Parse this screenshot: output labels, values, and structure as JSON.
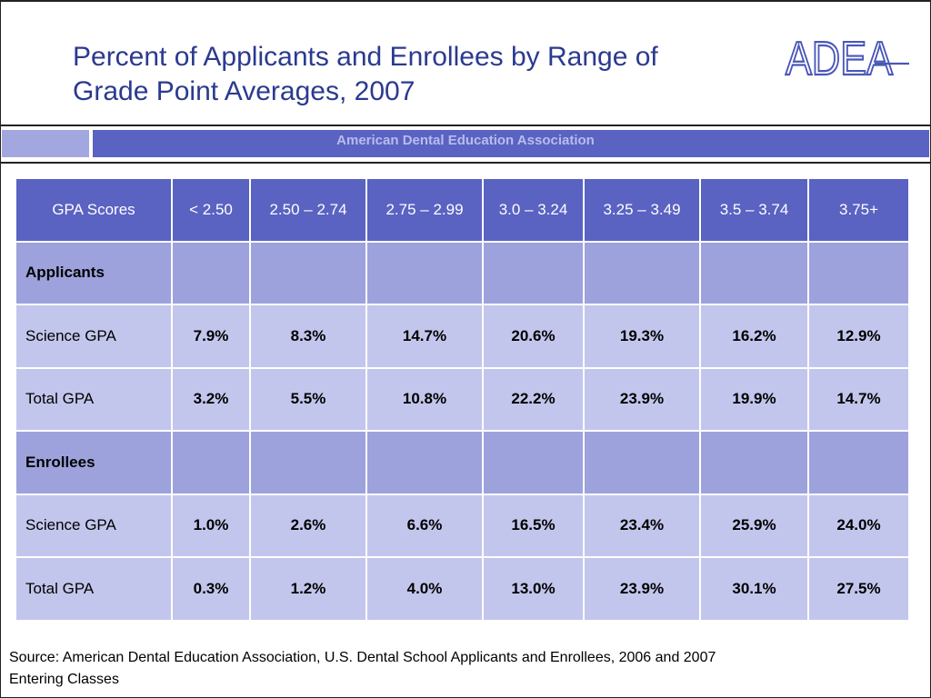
{
  "slide": {
    "title_line1": "Percent of Applicants and Enrollees by Range of",
    "title_line2": "Grade Point Averages, 2007",
    "logo_text": "ADEA",
    "band_text": "American Dental Education Association",
    "source_line1": "Source: American Dental Education Association, U.S. Dental School Applicants and Enrollees, 2006 and 2007",
    "source_line2": "Entering Classes",
    "colors": {
      "header": "#5a62c2",
      "section": "#9da2dc",
      "row": "#c3c6ec",
      "title": "#2b3a8f"
    }
  },
  "table": {
    "headers": [
      "GPA  Scores",
      "< 2.50",
      "2.50 – 2.74",
      "2.75 – 2.99",
      "3.0 – 3.24",
      "3.25 – 3.49",
      "3.5 – 3.74",
      "3.75+"
    ],
    "rows": [
      {
        "label": "Applicants",
        "section": true,
        "values": [
          "",
          "",
          "",
          "",
          "",
          "",
          ""
        ]
      },
      {
        "label": "Science GPA",
        "section": false,
        "values": [
          "7.9%",
          "8.3%",
          "14.7%",
          "20.6%",
          "19.3%",
          "16.2%",
          "12.9%"
        ]
      },
      {
        "label": "Total GPA",
        "section": false,
        "values": [
          "3.2%",
          "5.5%",
          "10.8%",
          "22.2%",
          "23.9%",
          "19.9%",
          "14.7%"
        ]
      },
      {
        "label": "Enrollees",
        "section": true,
        "values": [
          "",
          "",
          "",
          "",
          "",
          "",
          ""
        ]
      },
      {
        "label": "Science GPA",
        "section": false,
        "values": [
          "1.0%",
          "2.6%",
          "6.6%",
          "16.5%",
          "23.4%",
          "25.9%",
          "24.0%"
        ]
      },
      {
        "label": "Total GPA",
        "section": false,
        "values": [
          "0.3%",
          "1.2%",
          "4.0%",
          "13.0%",
          "23.9%",
          "30.1%",
          "27.5%"
        ]
      }
    ]
  }
}
